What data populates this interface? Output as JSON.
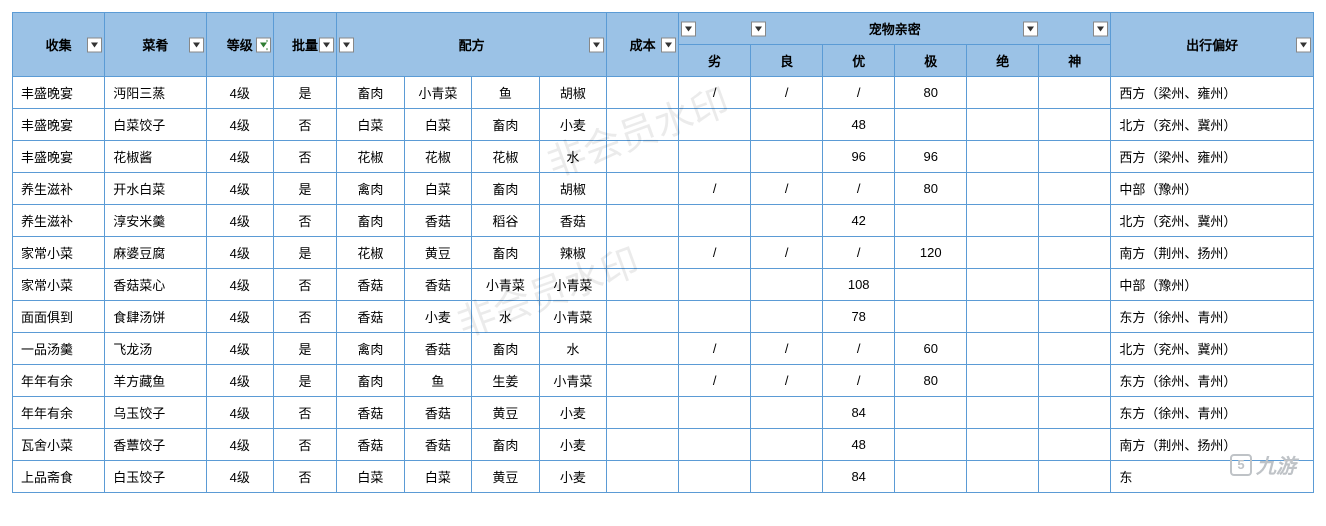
{
  "watermark": "非会员水印",
  "logo_text": "九游",
  "logo_badge": "5",
  "headers": {
    "collect": "收集",
    "dish": "菜肴",
    "level": "等级",
    "batch": "批量",
    "recipe": "配方",
    "cost": "成本",
    "pet_group": "宠物亲密",
    "pet_sub": [
      "劣",
      "良",
      "优",
      "极",
      "绝",
      "神"
    ],
    "pref": "出行偏好"
  },
  "filter_sorted_col": "level",
  "rows": [
    {
      "collect": "丰盛晚宴",
      "dish": "沔阳三蒸",
      "level": "4级",
      "batch": "是",
      "ing": [
        "畜肉",
        "小青菜",
        "鱼",
        "胡椒"
      ],
      "cost": "",
      "pet": [
        "/",
        "/",
        "/",
        "80",
        "",
        ""
      ],
      "pref": "西方（梁州、雍州）"
    },
    {
      "collect": "丰盛晚宴",
      "dish": "白菜饺子",
      "level": "4级",
      "batch": "否",
      "ing": [
        "白菜",
        "白菜",
        "畜肉",
        "小麦"
      ],
      "cost": "",
      "pet": [
        "",
        "",
        "48",
        "",
        "",
        ""
      ],
      "pref": "北方（兖州、冀州）"
    },
    {
      "collect": "丰盛晚宴",
      "dish": "花椒酱",
      "level": "4级",
      "batch": "否",
      "ing": [
        "花椒",
        "花椒",
        "花椒",
        "水"
      ],
      "cost": "",
      "pet": [
        "",
        "",
        "96",
        "96",
        "",
        ""
      ],
      "pref": "西方（梁州、雍州）"
    },
    {
      "collect": "养生滋补",
      "dish": "开水白菜",
      "level": "4级",
      "batch": "是",
      "ing": [
        "禽肉",
        "白菜",
        "畜肉",
        "胡椒"
      ],
      "cost": "",
      "pet": [
        "/",
        "/",
        "/",
        "80",
        "",
        ""
      ],
      "pref": "中部（豫州）"
    },
    {
      "collect": "养生滋补",
      "dish": "淳安米羹",
      "level": "4级",
      "batch": "否",
      "ing": [
        "畜肉",
        "香菇",
        "稻谷",
        "香菇"
      ],
      "cost": "",
      "pet": [
        "",
        "",
        "42",
        "",
        "",
        ""
      ],
      "pref": "北方（兖州、冀州）"
    },
    {
      "collect": "家常小菜",
      "dish": "麻婆豆腐",
      "level": "4级",
      "batch": "是",
      "ing": [
        "花椒",
        "黄豆",
        "畜肉",
        "辣椒"
      ],
      "cost": "",
      "pet": [
        "/",
        "/",
        "/",
        "120",
        "",
        ""
      ],
      "pref": "南方（荆州、扬州）"
    },
    {
      "collect": "家常小菜",
      "dish": "香菇菜心",
      "level": "4级",
      "batch": "否",
      "ing": [
        "香菇",
        "香菇",
        "小青菜",
        "小青菜"
      ],
      "cost": "",
      "pet": [
        "",
        "",
        "108",
        "",
        "",
        ""
      ],
      "pref": "中部（豫州）"
    },
    {
      "collect": "面面俱到",
      "dish": "食肆汤饼",
      "level": "4级",
      "batch": "否",
      "ing": [
        "香菇",
        "小麦",
        "水",
        "小青菜"
      ],
      "cost": "",
      "pet": [
        "",
        "",
        "78",
        "",
        "",
        ""
      ],
      "pref": "东方（徐州、青州）"
    },
    {
      "collect": "一品汤羹",
      "dish": "飞龙汤",
      "level": "4级",
      "batch": "是",
      "ing": [
        "禽肉",
        "香菇",
        "畜肉",
        "水"
      ],
      "cost": "",
      "pet": [
        "/",
        "/",
        "/",
        "60",
        "",
        ""
      ],
      "pref": "北方（兖州、冀州）"
    },
    {
      "collect": "年年有余",
      "dish": "羊方藏鱼",
      "level": "4级",
      "batch": "是",
      "ing": [
        "畜肉",
        "鱼",
        "生姜",
        "小青菜"
      ],
      "cost": "",
      "pet": [
        "/",
        "/",
        "/",
        "80",
        "",
        ""
      ],
      "pref": "东方（徐州、青州）"
    },
    {
      "collect": "年年有余",
      "dish": "乌玉饺子",
      "level": "4级",
      "batch": "否",
      "ing": [
        "香菇",
        "香菇",
        "黄豆",
        "小麦"
      ],
      "cost": "",
      "pet": [
        "",
        "",
        "84",
        "",
        "",
        ""
      ],
      "pref": "东方（徐州、青州）"
    },
    {
      "collect": "瓦舍小菜",
      "dish": "香蕈饺子",
      "level": "4级",
      "batch": "否",
      "ing": [
        "香菇",
        "香菇",
        "畜肉",
        "小麦"
      ],
      "cost": "",
      "pet": [
        "",
        "",
        "48",
        "",
        "",
        ""
      ],
      "pref": "南方（荆州、扬州）"
    },
    {
      "collect": "上品斋食",
      "dish": "白玉饺子",
      "level": "4级",
      "batch": "否",
      "ing": [
        "白菜",
        "白菜",
        "黄豆",
        "小麦"
      ],
      "cost": "",
      "pet": [
        "",
        "",
        "84",
        "",
        "",
        ""
      ],
      "pref": "东"
    }
  ]
}
